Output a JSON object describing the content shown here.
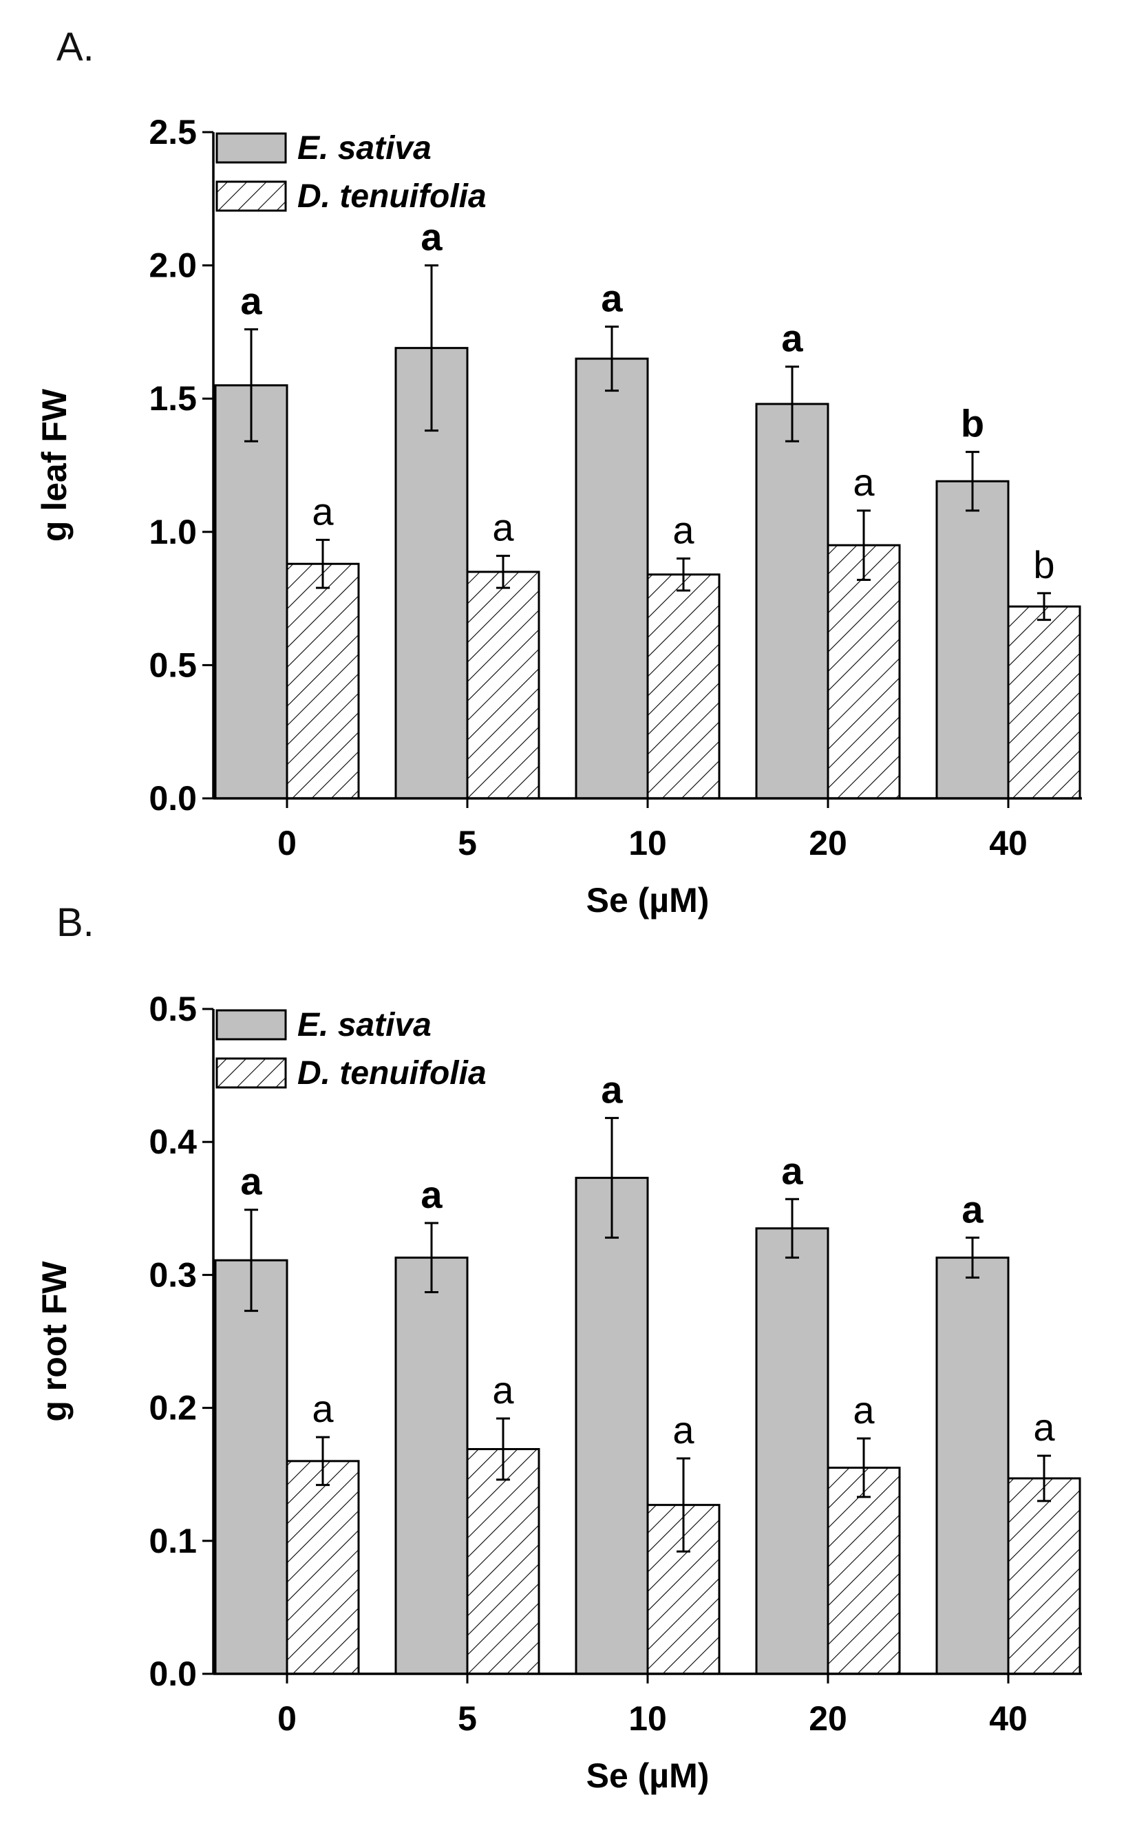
{
  "chart_data": [
    {
      "type": "bar",
      "panel_label": "A.",
      "title": "",
      "xlabel": "Se (µM)",
      "ylabel": "g leaf FW",
      "categories": [
        "0",
        "5",
        "10",
        "20",
        "40"
      ],
      "ylim": [
        0,
        2.5
      ],
      "yticks": [
        "0.0",
        "0.5",
        "1.0",
        "1.5",
        "2.0",
        "2.5"
      ],
      "legend_position": "top-left",
      "series": [
        {
          "name": "E. sativa",
          "fill": "solid-gray",
          "values": [
            1.55,
            1.69,
            1.65,
            1.48,
            1.19
          ],
          "errors": [
            0.21,
            0.31,
            0.12,
            0.14,
            0.11
          ],
          "letters": [
            "a",
            "a",
            "a",
            "a",
            "b"
          ]
        },
        {
          "name": "D. tenuifolia",
          "fill": "hatched",
          "values": [
            0.88,
            0.85,
            0.84,
            0.95,
            0.72
          ],
          "errors": [
            0.09,
            0.06,
            0.06,
            0.13,
            0.05
          ],
          "letters": [
            "a",
            "a",
            "a",
            "a",
            "b"
          ]
        }
      ]
    },
    {
      "type": "bar",
      "panel_label": "B.",
      "title": "",
      "xlabel": "Se (µM)",
      "ylabel": "g root FW",
      "categories": [
        "0",
        "5",
        "10",
        "20",
        "40"
      ],
      "ylim": [
        0,
        0.5
      ],
      "yticks": [
        "0.0",
        "0.1",
        "0.2",
        "0.3",
        "0.4",
        "0.5"
      ],
      "legend_position": "top-left",
      "series": [
        {
          "name": "E. sativa",
          "fill": "solid-gray",
          "values": [
            0.311,
            0.313,
            0.373,
            0.335,
            0.313
          ],
          "errors": [
            0.038,
            0.026,
            0.045,
            0.022,
            0.015
          ],
          "letters": [
            "a",
            "a",
            "a",
            "a",
            "a"
          ]
        },
        {
          "name": "D. tenuifolia",
          "fill": "hatched",
          "values": [
            0.16,
            0.169,
            0.127,
            0.155,
            0.147
          ],
          "errors": [
            0.018,
            0.023,
            0.035,
            0.022,
            0.017
          ],
          "letters": [
            "a",
            "a",
            "a",
            "a",
            "a"
          ]
        }
      ]
    }
  ],
  "colors": {
    "bar_gray": "#c0c0c0",
    "hatch_bg": "#ffffff",
    "line": "#000000"
  }
}
